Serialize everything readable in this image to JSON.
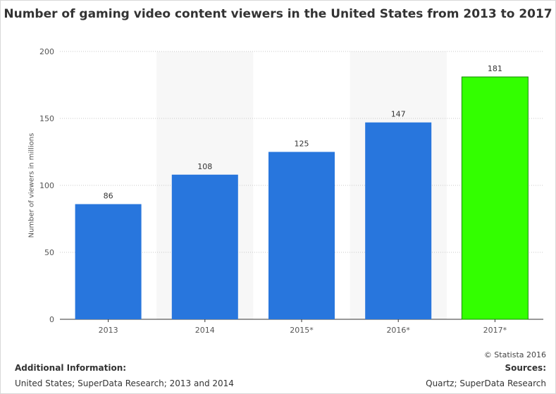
{
  "chart_data": {
    "type": "bar",
    "title": "Number of gaming video content viewers in the United States from 2013 to 2017",
    "ylabel": "Number of viewers in millions",
    "xlabel": "",
    "categories": [
      "2013",
      "2014",
      "2015*",
      "2016*",
      "2017*"
    ],
    "values": [
      86,
      108,
      125,
      147,
      181
    ],
    "value_labels": [
      "86",
      "108",
      "125",
      "147",
      "181"
    ],
    "ylim": [
      0,
      200
    ],
    "yticks": [
      0,
      50,
      100,
      150,
      200
    ],
    "ytick_labels": [
      "0",
      "50",
      "100",
      "150",
      "200"
    ],
    "grid": true,
    "bar_color": "#2876dd",
    "highlight_color": "#33ff00",
    "highlight_index": 4
  },
  "footer": {
    "copyright": "© Statista 2016",
    "additional_heading": "Additional Information:",
    "additional_text": "United States; SuperData Research; 2013 and 2014",
    "sources_heading": "Sources:",
    "sources_text": "Quartz; SuperData Research"
  }
}
